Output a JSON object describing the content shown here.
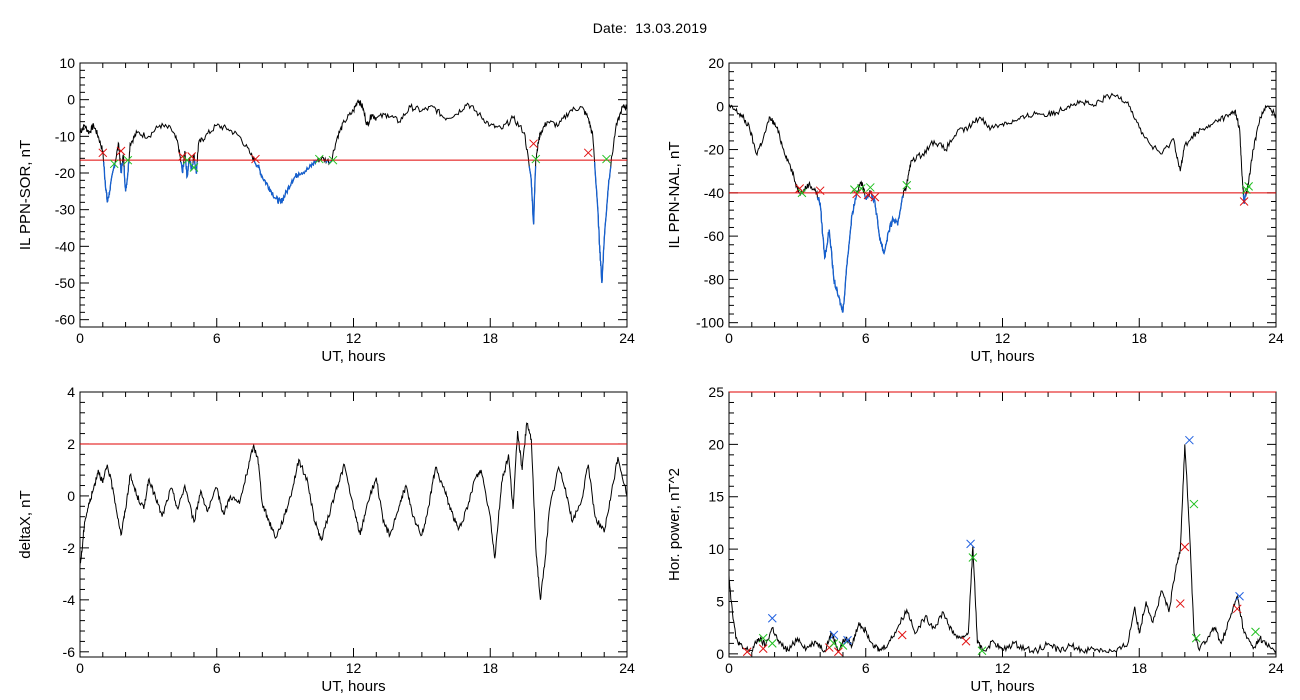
{
  "header": {
    "date_label": "Date:",
    "date_value": "13.03.2019"
  },
  "colors": {
    "trace": "#000000",
    "threshold": "#e00000",
    "highlight": "#1560d0",
    "marker_red": "#e01010",
    "marker_green": "#20c020",
    "marker_blue": "#2060e0"
  },
  "chart_data": [
    {
      "type": "line",
      "xlabel": "UT, hours",
      "ylabel": "IL PPN-SOR, nT",
      "xlim": [
        0,
        24
      ],
      "ylim": [
        -62,
        10
      ],
      "xticks": [
        "0",
        "6",
        "12",
        "18",
        "24"
      ],
      "yticks": [
        "10",
        "0",
        "-10",
        "-20",
        "-30",
        "-40",
        "-50",
        "-60"
      ],
      "threshold": -16.5,
      "series": [
        {
          "x": [
            0,
            0.2,
            0.4,
            0.6,
            0.8,
            1.0,
            1.1,
            1.2,
            1.3,
            1.5,
            1.7,
            1.8,
            1.9,
            2.0,
            2.1,
            2.2,
            2.5,
            3.0,
            3.5,
            4.0,
            4.3,
            4.5,
            4.6,
            4.7,
            4.8,
            4.9,
            5.0,
            5.1,
            5.2,
            5.5,
            6.0,
            6.5,
            7.0,
            7.5,
            7.8,
            8.0,
            8.3,
            8.6,
            8.8,
            9.0,
            9.3,
            9.6,
            10.0,
            10.3,
            10.6,
            11.0,
            11.3,
            11.6,
            12.0,
            12.2,
            12.4,
            12.6,
            12.8,
            13.0,
            13.5,
            14.0,
            14.5,
            15.0,
            15.5,
            16.0,
            16.5,
            17.0,
            17.5,
            18.0,
            18.5,
            19.0,
            19.5,
            19.8,
            19.9,
            20.0,
            20.1,
            20.2,
            20.5,
            21.0,
            21.5,
            22.0,
            22.3,
            22.5,
            22.7,
            22.8,
            22.9,
            23.0,
            23.2,
            23.5,
            23.8,
            24.0
          ],
          "y": [
            -9,
            -7,
            -9,
            -7,
            -10,
            -14,
            -22,
            -28,
            -25,
            -18,
            -12,
            -20,
            -15,
            -25,
            -20,
            -12,
            -9,
            -10,
            -7,
            -8,
            -12,
            -20,
            -14,
            -21,
            -16,
            -19,
            -15,
            -20,
            -12,
            -10,
            -7,
            -8,
            -10,
            -15,
            -18,
            -21,
            -24,
            -27,
            -28,
            -26,
            -22,
            -20,
            -19,
            -17,
            -16,
            -17,
            -10,
            -6,
            -3,
            0,
            -2,
            -7,
            -4,
            -5,
            -4,
            -6,
            -2,
            -3,
            -2,
            -5,
            -4,
            -1,
            -4,
            -7,
            -8,
            -5,
            -9,
            -22,
            -34,
            -16,
            -12,
            -9,
            -6,
            -7,
            -3,
            -2,
            -5,
            -10,
            -28,
            -40,
            -50,
            -38,
            -22,
            -8,
            -2,
            -2
          ]
        }
      ],
      "markers": {
        "red": [
          [
            1.0,
            -14.5
          ],
          [
            1.8,
            -14.0
          ],
          [
            4.5,
            -15.5
          ],
          [
            4.9,
            -15.5
          ],
          [
            7.7,
            -16.2
          ],
          [
            19.9,
            -12.0
          ],
          [
            22.3,
            -14.5
          ]
        ],
        "green": [
          [
            1.5,
            -17.5
          ],
          [
            2.1,
            -16.5
          ],
          [
            4.7,
            -16.5
          ],
          [
            5.0,
            -18.5
          ],
          [
            10.5,
            -16.2
          ],
          [
            11.1,
            -16.5
          ],
          [
            20.0,
            -16.2
          ],
          [
            23.1,
            -16.2
          ]
        ]
      }
    },
    {
      "type": "line",
      "xlabel": "UT, hours",
      "ylabel": "IL PPN-NAL, nT",
      "xlim": [
        0,
        24
      ],
      "ylim": [
        -102,
        20
      ],
      "xticks": [
        "0",
        "6",
        "12",
        "18",
        "24"
      ],
      "yticks": [
        "20",
        "0",
        "-20",
        "-40",
        "-60",
        "-80",
        "-100"
      ],
      "threshold": -40,
      "series": [
        {
          "x": [
            0,
            0.3,
            0.6,
            0.9,
            1.2,
            1.5,
            1.8,
            2.1,
            2.4,
            2.7,
            3.0,
            3.2,
            3.5,
            3.8,
            4.0,
            4.2,
            4.4,
            4.6,
            4.8,
            5.0,
            5.2,
            5.4,
            5.6,
            5.8,
            6.0,
            6.2,
            6.4,
            6.6,
            6.8,
            7.0,
            7.2,
            7.4,
            7.6,
            7.8,
            8.0,
            8.5,
            9.0,
            9.5,
            10.0,
            10.5,
            11.0,
            11.5,
            12.0,
            12.5,
            13.0,
            13.5,
            14.0,
            14.5,
            15.0,
            15.5,
            16.0,
            16.5,
            17.0,
            17.5,
            18.0,
            18.5,
            19.0,
            19.5,
            19.8,
            20.0,
            20.5,
            21.0,
            21.5,
            22.0,
            22.2,
            22.4,
            22.5,
            22.6,
            22.8,
            23.0,
            23.3,
            23.6,
            24.0
          ],
          "y": [
            0,
            -2,
            -5,
            -10,
            -22,
            -15,
            -5,
            -10,
            -20,
            -28,
            -38,
            -40,
            -36,
            -39,
            -45,
            -70,
            -57,
            -80,
            -88,
            -95,
            -70,
            -50,
            -40,
            -35,
            -42,
            -40,
            -44,
            -60,
            -68,
            -58,
            -52,
            -55,
            -42,
            -36,
            -25,
            -22,
            -16,
            -20,
            -12,
            -10,
            -5,
            -10,
            -8,
            -7,
            -5,
            -3,
            -4,
            -2,
            1,
            2,
            0,
            4,
            5,
            2,
            -10,
            -18,
            -22,
            -15,
            -30,
            -18,
            -12,
            -10,
            -6,
            -4,
            -2,
            -10,
            -30,
            -45,
            -35,
            -20,
            -5,
            0,
            -4
          ]
        }
      ],
      "markers": {
        "red": [
          [
            3.1,
            -38.0
          ],
          [
            4.0,
            -39.0
          ],
          [
            5.6,
            -40.5
          ],
          [
            6.1,
            -41.0
          ],
          [
            6.4,
            -42.0
          ],
          [
            22.6,
            -44.0
          ]
        ],
        "green": [
          [
            3.2,
            -40.0
          ],
          [
            5.5,
            -38.5
          ],
          [
            5.8,
            -38.0
          ],
          [
            6.2,
            -37.5
          ],
          [
            7.8,
            -36.5
          ],
          [
            22.7,
            -38.5
          ],
          [
            22.8,
            -37.0
          ]
        ]
      }
    },
    {
      "type": "line",
      "xlabel": "UT, hours",
      "ylabel": "deltaX, nT",
      "xlim": [
        0,
        24
      ],
      "ylim": [
        -6.2,
        4
      ],
      "xticks": [
        "0",
        "6",
        "12",
        "18",
        "24"
      ],
      "yticks": [
        "4",
        "2",
        "0",
        "-2",
        "-4",
        "-6"
      ],
      "threshold": 2,
      "series": [
        {
          "x": [
            0,
            0.1,
            0.2,
            0.4,
            0.6,
            0.8,
            1.0,
            1.2,
            1.5,
            1.8,
            2.0,
            2.2,
            2.5,
            2.8,
            3.0,
            3.3,
            3.6,
            4.0,
            4.3,
            4.6,
            5.0,
            5.3,
            5.6,
            6.0,
            6.3,
            6.6,
            7.0,
            7.3,
            7.6,
            7.8,
            8.0,
            8.3,
            8.6,
            9.0,
            9.3,
            9.6,
            10.0,
            10.3,
            10.6,
            11.0,
            11.3,
            11.6,
            12.0,
            12.3,
            12.6,
            13.0,
            13.3,
            13.6,
            14.0,
            14.3,
            14.6,
            15.0,
            15.3,
            15.6,
            16.0,
            16.3,
            16.6,
            17.0,
            17.3,
            17.6,
            18.0,
            18.2,
            18.5,
            18.8,
            19.0,
            19.2,
            19.4,
            19.6,
            19.8,
            20.0,
            20.2,
            20.4,
            20.6,
            21.0,
            21.3,
            21.6,
            22.0,
            22.3,
            22.6,
            23.0,
            23.3,
            23.6,
            24.0
          ],
          "y": [
            -2.7,
            -2.0,
            -1.0,
            -0.3,
            0.3,
            1.0,
            0.5,
            1.2,
            0.0,
            -1.5,
            -0.5,
            0.8,
            0.0,
            -0.5,
            0.6,
            0.0,
            -0.8,
            0.3,
            -0.5,
            0.4,
            -1.0,
            0.2,
            -0.6,
            0.3,
            -0.7,
            0.0,
            -0.3,
            0.8,
            1.9,
            1.5,
            -0.3,
            -1.0,
            -1.6,
            -0.7,
            0.2,
            1.4,
            0.5,
            -1.0,
            -1.7,
            -0.5,
            0.4,
            1.2,
            -0.5,
            -1.5,
            -0.3,
            0.7,
            -1.0,
            -1.5,
            -0.4,
            0.4,
            -0.8,
            -1.5,
            -0.4,
            1.1,
            0.2,
            -0.6,
            -1.3,
            -0.5,
            0.6,
            1.0,
            -0.8,
            -2.4,
            0.5,
            1.6,
            -0.5,
            2.5,
            1.0,
            2.8,
            2.2,
            -2.0,
            -4.0,
            -2.5,
            -0.5,
            1.1,
            0.3,
            -1.0,
            -0.2,
            1.2,
            -0.8,
            -1.4,
            0.0,
            1.5,
            0.0
          ]
        }
      ],
      "markers": {
        "red": [],
        "green": []
      }
    },
    {
      "type": "line",
      "xlabel": "UT, hours",
      "ylabel": "Hor. power, nT^2",
      "xlim": [
        0,
        24
      ],
      "ylim": [
        -0.3,
        25
      ],
      "xticks": [
        "0",
        "6",
        "12",
        "18",
        "24"
      ],
      "yticks": [
        "25",
        "20",
        "15",
        "10",
        "5",
        "0"
      ],
      "threshold": 25,
      "series": [
        {
          "x": [
            0,
            0.1,
            0.3,
            0.6,
            1.0,
            1.3,
            1.6,
            1.9,
            2.2,
            2.6,
            3.0,
            3.4,
            3.8,
            4.2,
            4.5,
            4.8,
            5.1,
            5.4,
            5.7,
            6.0,
            6.3,
            6.6,
            7.0,
            7.4,
            7.8,
            8.2,
            8.6,
            9.0,
            9.4,
            9.8,
            10.2,
            10.5,
            10.7,
            10.9,
            11.2,
            11.6,
            12.0,
            12.5,
            13.0,
            13.5,
            14.0,
            14.5,
            15.0,
            15.5,
            16.0,
            16.5,
            17.0,
            17.5,
            17.8,
            18.0,
            18.3,
            18.6,
            19.0,
            19.3,
            19.6,
            19.8,
            20.0,
            20.2,
            20.4,
            20.6,
            21.0,
            21.3,
            21.6,
            22.0,
            22.3,
            22.6,
            23.0,
            23.3,
            23.6,
            24.0
          ],
          "y": [
            7.5,
            5.0,
            1.5,
            0.5,
            0.3,
            1.5,
            0.8,
            2.5,
            1.0,
            0.3,
            1.5,
            0.5,
            1.2,
            0.3,
            2.0,
            0.3,
            1.5,
            0.8,
            3.0,
            2.2,
            1.0,
            0.3,
            1.0,
            2.5,
            4.2,
            2.0,
            3.5,
            2.5,
            4.0,
            2.0,
            1.5,
            2.0,
            10.3,
            1.0,
            0.3,
            1.2,
            0.3,
            1.0,
            0.5,
            0.3,
            1.0,
            0.3,
            0.8,
            0.3,
            0.5,
            0.3,
            0.2,
            1.0,
            4.5,
            2.0,
            5.0,
            3.0,
            6.0,
            4.0,
            8.0,
            10.0,
            20.0,
            12.0,
            2.0,
            0.5,
            1.5,
            2.5,
            1.0,
            3.5,
            5.5,
            2.0,
            0.5,
            1.5,
            0.8,
            0.3
          ]
        }
      ],
      "markers": {
        "red": [
          [
            0.8,
            0.2
          ],
          [
            1.5,
            0.5
          ],
          [
            4.4,
            0.6
          ],
          [
            4.8,
            0.2
          ],
          [
            7.6,
            1.8
          ],
          [
            10.4,
            1.2
          ],
          [
            19.8,
            4.8
          ],
          [
            20.0,
            10.2
          ],
          [
            22.3,
            4.3
          ]
        ],
        "green": [
          [
            1.5,
            1.5
          ],
          [
            1.9,
            1.0
          ],
          [
            4.6,
            1.0
          ],
          [
            5.0,
            0.8
          ],
          [
            10.7,
            9.2
          ],
          [
            11.1,
            0.3
          ],
          [
            20.4,
            14.3
          ],
          [
            20.5,
            1.5
          ],
          [
            23.1,
            2.1
          ]
        ],
        "blue": [
          [
            1.9,
            3.4
          ],
          [
            4.6,
            1.8
          ],
          [
            5.2,
            1.3
          ],
          [
            10.6,
            10.5
          ],
          [
            20.2,
            20.4
          ],
          [
            22.4,
            5.5
          ]
        ]
      }
    }
  ]
}
